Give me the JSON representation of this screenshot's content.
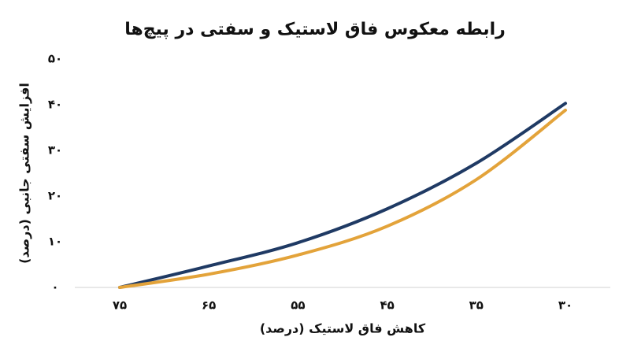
{
  "chart_data": {
    "type": "line",
    "title": "رابطه معکوس فاق لاستیک و سفتی در پیچ‌ها",
    "x_label": "کاهش فاق لاستیک (درصد)",
    "y_label": "افزایش سفتی جانبی (درصد)",
    "categories": [
      "۷۵",
      "۶۵",
      "۵۵",
      "۴۵",
      "۳۵",
      "۳۰"
    ],
    "series": [
      {
        "color": "#1f3a64",
        "values": [
          0,
          4.7,
          9.8,
          17.2,
          27.2,
          40.3
        ]
      },
      {
        "color": "#e3a33a",
        "values": [
          0,
          2.9,
          7.1,
          13.4,
          23.6,
          38.8
        ]
      }
    ],
    "ylim": [
      0,
      50
    ],
    "yticks": [
      {
        "value": 0,
        "label": "۰"
      },
      {
        "value": 10,
        "label": "۱۰"
      },
      {
        "value": 20,
        "label": "۲۰"
      },
      {
        "value": 30,
        "label": "۳۰"
      },
      {
        "value": 40,
        "label": "۴۰"
      },
      {
        "value": 50,
        "label": "۵۰"
      }
    ]
  }
}
